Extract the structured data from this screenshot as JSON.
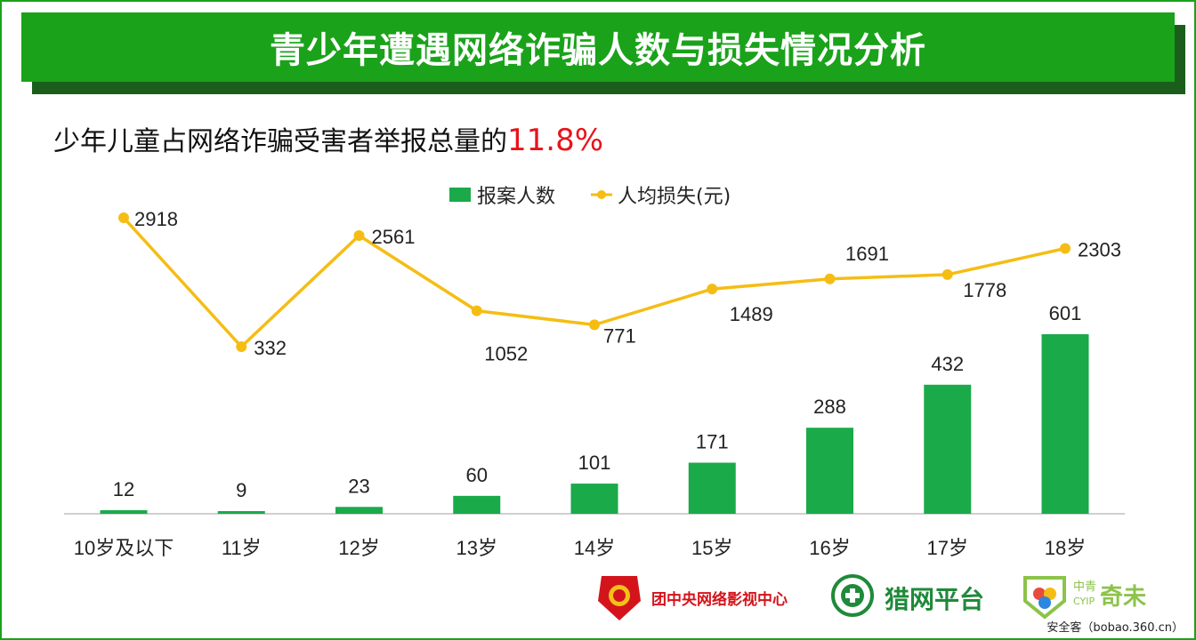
{
  "page": {
    "title": "青少年遭遇网络诈骗人数与损失情况分析",
    "subtitle_prefix": "少年儿童占网络诈骗受害者举报总量的",
    "subtitle_highlight": "11.8%"
  },
  "colors": {
    "accent_green": "#1aa21a",
    "bar_green": "#1aaa4a",
    "line_gold": "#f5bd14",
    "highlight_red": "#e8141b"
  },
  "chart_data": {
    "type": "bar",
    "categories": [
      "10岁及以下",
      "11岁",
      "12岁",
      "13岁",
      "14岁",
      "15岁",
      "16岁",
      "17岁",
      "18岁"
    ],
    "series": [
      {
        "name": "报案人数",
        "type": "bar",
        "values": [
          12,
          9,
          23,
          60,
          101,
          171,
          288,
          432,
          601
        ]
      },
      {
        "name": "人均损失(元)",
        "type": "line",
        "values": [
          2918,
          332,
          2561,
          1052,
          771,
          1489,
          1691,
          1778,
          2303
        ]
      }
    ],
    "legend_position": "top-center",
    "grid": false,
    "bar_ylim": [
      0,
      610
    ],
    "line_ylim": [
      -1900,
      3000
    ]
  },
  "footer": {
    "logo1_text": "团中央网络影视中心",
    "logo2_text": "猎网平台",
    "logo3_text_top": "中青",
    "logo3_text_sub": "CYIP",
    "logo3_text_main": "奇未",
    "watermark": "安全客（bobao.360.cn）"
  },
  "icons": [
    "league-emblem-icon",
    "shield-plus-icon",
    "cyip-flower-icon"
  ]
}
